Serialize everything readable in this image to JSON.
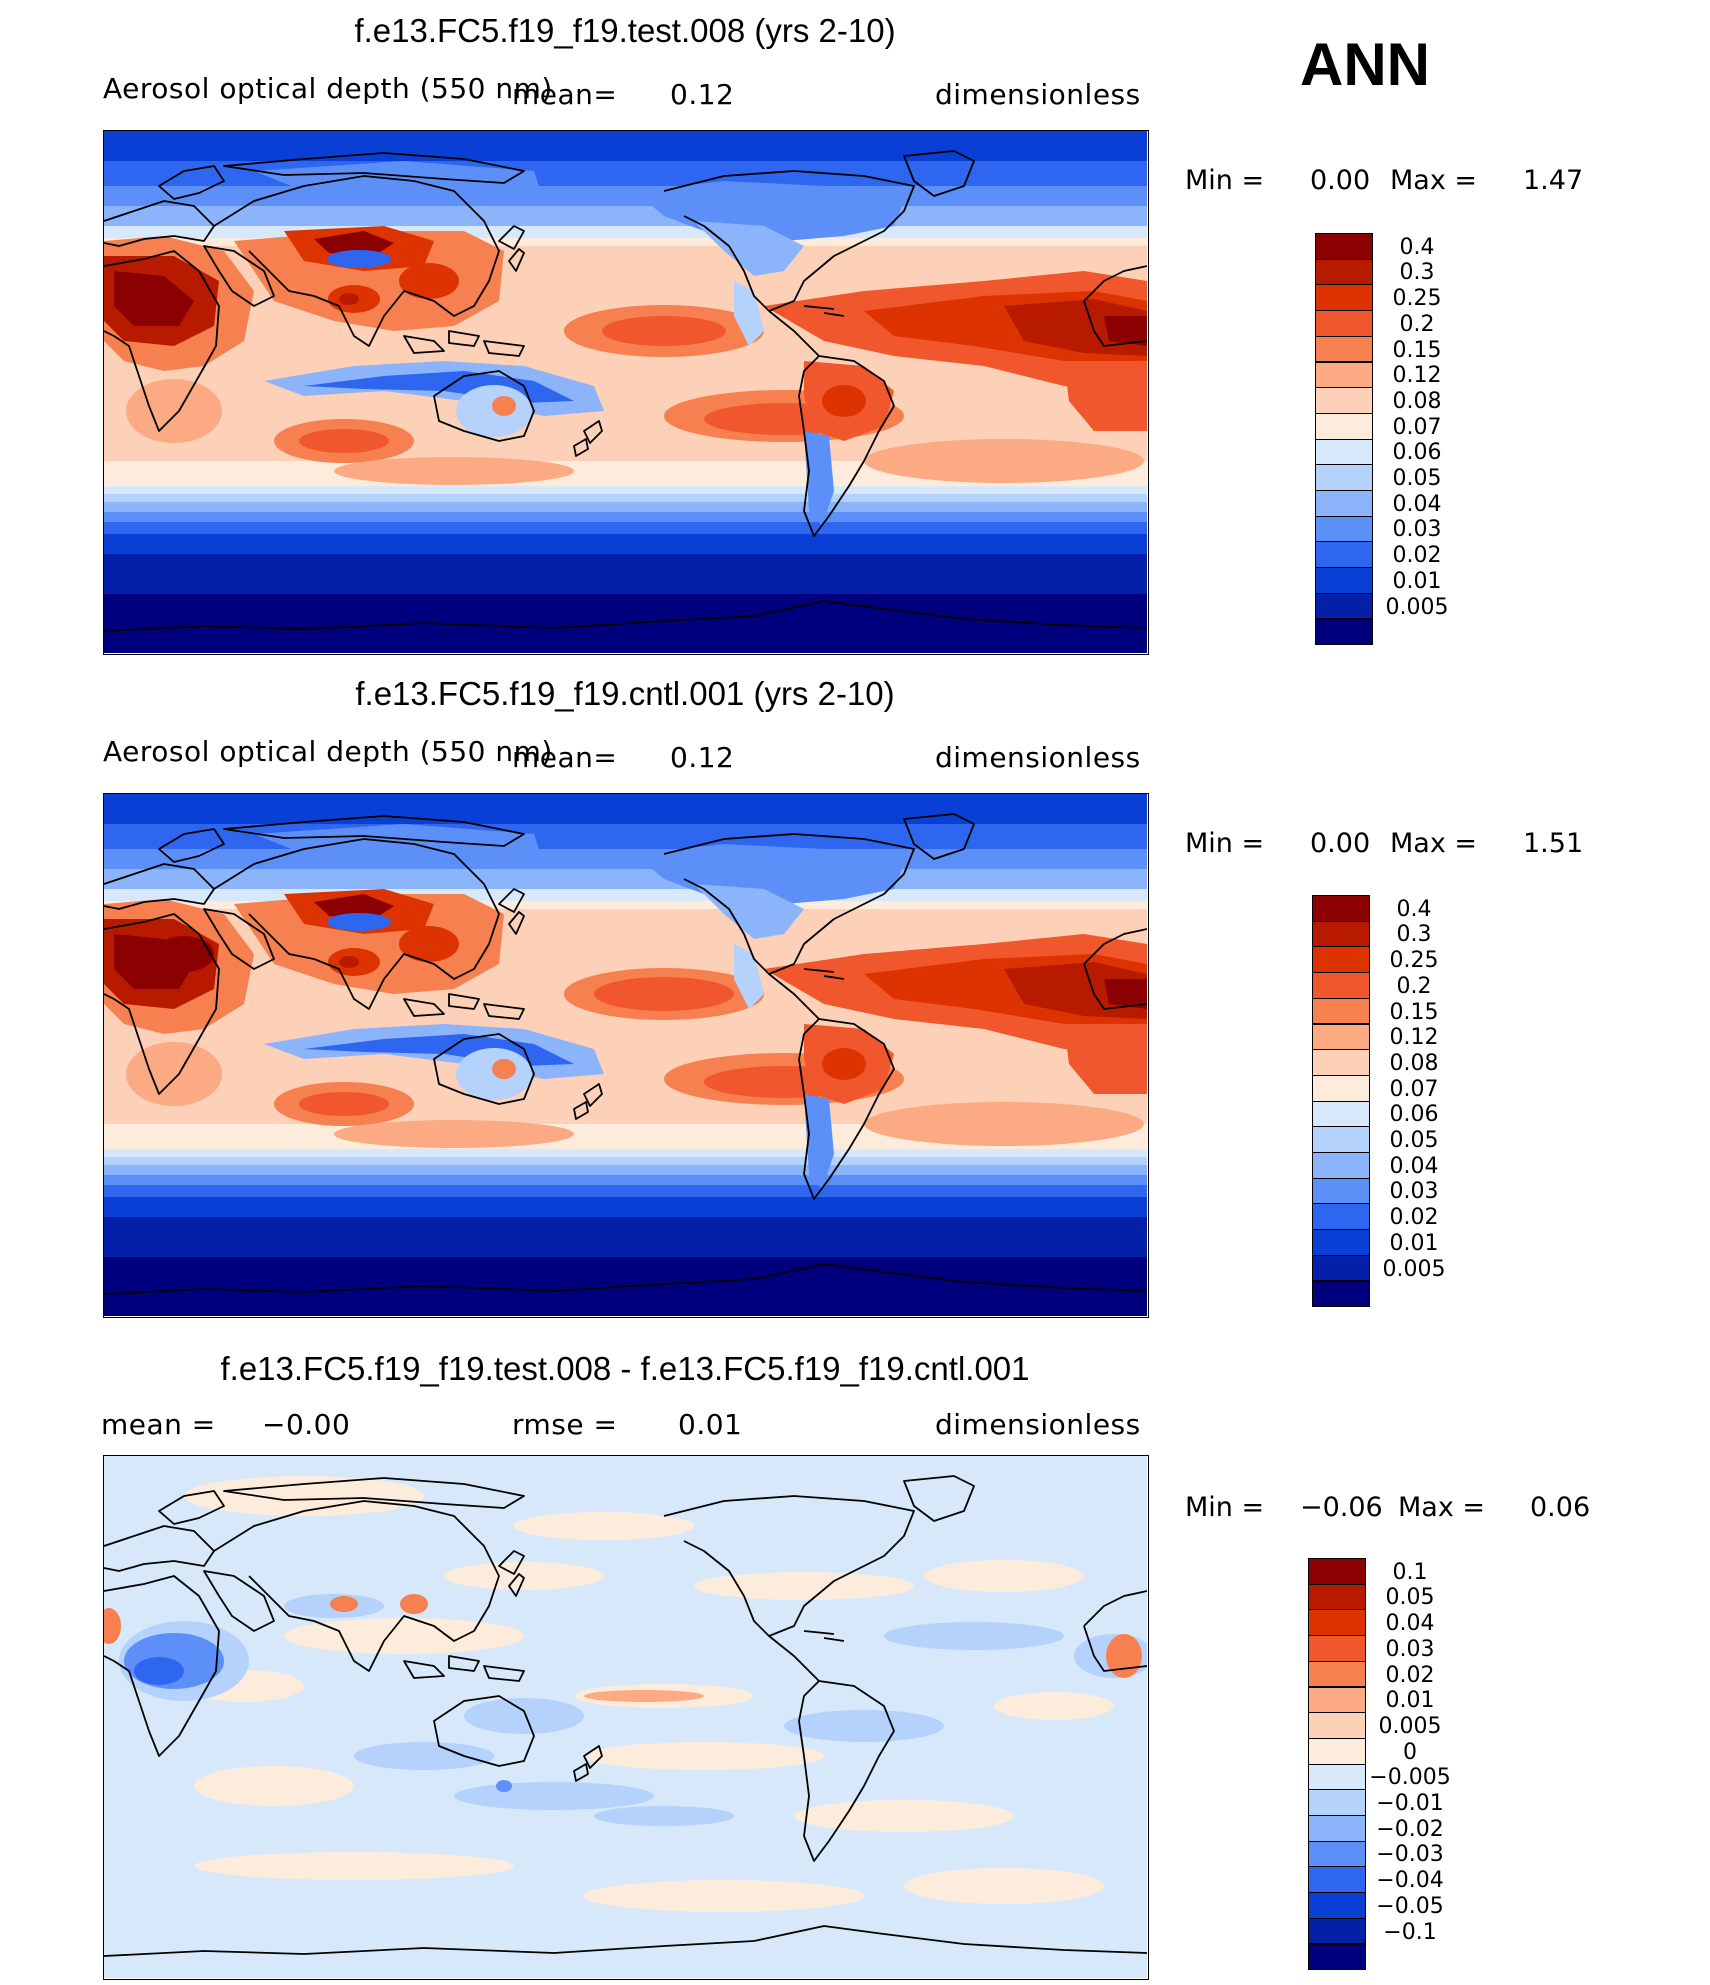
{
  "header": {
    "season": "ANN"
  },
  "panels": [
    {
      "title": "f.e13.FC5.f19_f19.test.008 (yrs 2-10)",
      "variable": "Aerosol optical depth (550 nm)",
      "mean_label": "mean=",
      "mean_value": "0.12",
      "units": "dimensionless",
      "min_label": "Min =",
      "min_value": "0.00",
      "max_label": "Max =",
      "max_value": "1.47"
    },
    {
      "title": "f.e13.FC5.f19_f19.cntl.001 (yrs 2-10)",
      "variable": "Aerosol optical depth (550 nm)",
      "mean_label": "mean=",
      "mean_value": "0.12",
      "units": "dimensionless",
      "min_label": "Min =",
      "min_value": "0.00",
      "max_label": "Max =",
      "max_value": "1.51"
    },
    {
      "title": "f.e13.FC5.f19_f19.test.008 - f.e13.FC5.f19_f19.cntl.001",
      "mean_label": "mean =",
      "mean_value": "−0.00",
      "rmse_label": "rmse =",
      "rmse_value": "0.01",
      "units": "dimensionless",
      "min_label": "Min =",
      "min_value": "−0.06",
      "max_label": "Max =",
      "max_value": "0.06"
    }
  ],
  "colorbars": {
    "aod": {
      "levels": [
        "0.4",
        "0.3",
        "0.25",
        "0.2",
        "0.15",
        "0.12",
        "0.08",
        "0.07",
        "0.06",
        "0.05",
        "0.04",
        "0.03",
        "0.02",
        "0.01",
        "0.005"
      ],
      "colors": [
        "#8b0000",
        "#b81a00",
        "#dd3300",
        "#f0572c",
        "#f78050",
        "#fbaa84",
        "#fdd0b8",
        "#fdecdc",
        "#d6e8fa",
        "#b4d2fb",
        "#8cb4fa",
        "#5d8ff8",
        "#2f66f0",
        "#0a3fd6",
        "#0420a8",
        "#00007f"
      ]
    },
    "diff": {
      "levels": [
        "0.1",
        "0.05",
        "0.04",
        "0.03",
        "0.02",
        "0.01",
        "0.005",
        "0",
        "−0.005",
        "−0.01",
        "−0.02",
        "−0.03",
        "−0.04",
        "−0.05",
        "−0.1"
      ],
      "colors": [
        "#8b0000",
        "#b81a00",
        "#dd3300",
        "#f0572c",
        "#f78050",
        "#fbaa84",
        "#fdd0b8",
        "#fdecdc",
        "#d6e8fa",
        "#b4d2fb",
        "#8cb4fa",
        "#5d8ff8",
        "#2f66f0",
        "#0a3fd6",
        "#0420a8",
        "#00007f"
      ]
    }
  },
  "chart_data": [
    {
      "type": "heatmap",
      "title": "f.e13.FC5.f19_f19.test.008 (yrs 2-10)",
      "field": "Aerosol optical depth (550 nm)",
      "units": "dimensionless",
      "projection": "cylindrical equidistant, centered 180",
      "mean": 0.12,
      "min": 0.0,
      "max": 1.47
    },
    {
      "type": "heatmap",
      "title": "f.e13.FC5.f19_f19.cntl.001 (yrs 2-10)",
      "field": "Aerosol optical depth (550 nm)",
      "units": "dimensionless",
      "projection": "cylindrical equidistant, centered 180",
      "mean": 0.12,
      "min": 0.0,
      "max": 1.51
    },
    {
      "type": "heatmap",
      "title": "f.e13.FC5.f19_f19.test.008 - f.e13.FC5.f19_f19.cntl.001",
      "field": "difference",
      "units": "dimensionless",
      "mean": -0.0,
      "rmse": 0.01,
      "min": -0.06,
      "max": 0.06
    }
  ]
}
